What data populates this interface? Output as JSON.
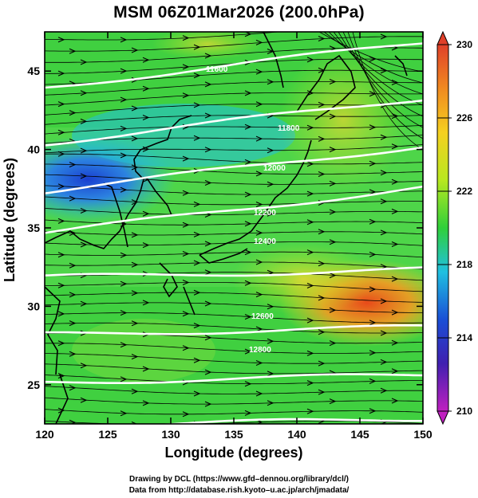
{
  "title": "MSM 06Z01Mar2026 (200.0hPa)",
  "map": {
    "lon_range": [
      120,
      150
    ],
    "lat_range": [
      22.5,
      47.5
    ],
    "x_ticks": [
      "120",
      "125",
      "130",
      "135",
      "140",
      "145",
      "150"
    ],
    "y_ticks": [
      "25",
      "30",
      "35",
      "40",
      "45"
    ],
    "xlabel": "Longitude (degrees)",
    "ylabel": "Latitude  (degrees)",
    "field": "temperature shading, geopotential height contours, wind streamlines",
    "contour_labels": [
      "11600",
      "11800",
      "12000",
      "12200",
      "12400",
      "12600",
      "12800"
    ]
  },
  "colorbar": {
    "ticks": [
      "230",
      "226",
      "222",
      "218",
      "214",
      "210"
    ],
    "colors": {
      "max": "#e0402a",
      "high": "#f5d020",
      "mid": "#2fcf3a",
      "cold": "#20c0e0",
      "low": "#1a4fd6",
      "min": "#c020c0"
    }
  },
  "credits": {
    "line1": "Drawing by DCL (https://www.gfd–dennou.org/library/dcl/)",
    "line2": "Data from http://database.rish.kyoto–u.ac.jp/arch/jmadata/"
  }
}
